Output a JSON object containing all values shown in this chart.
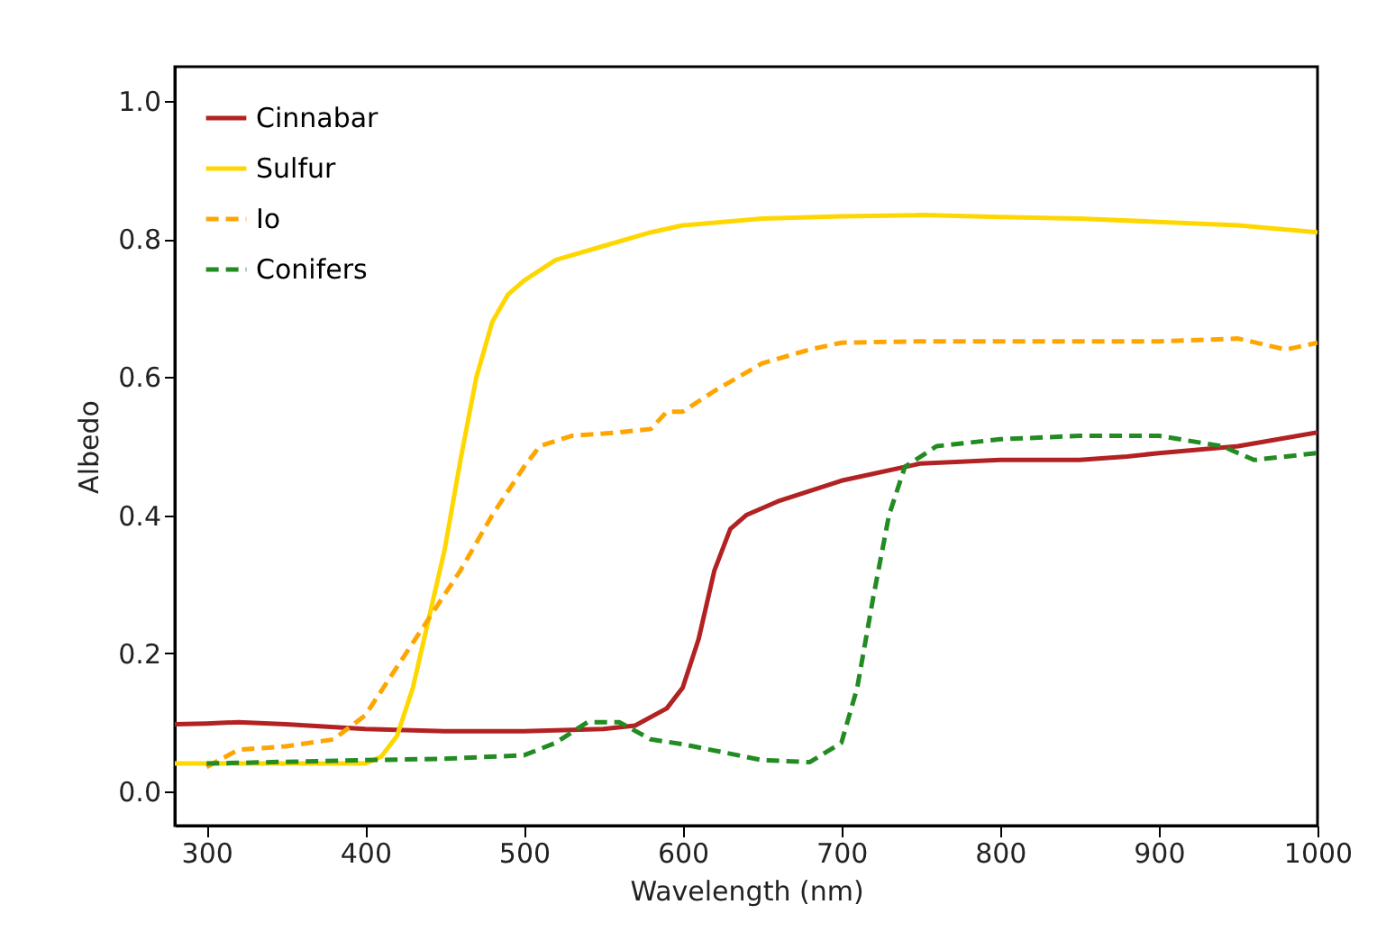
{
  "chart_data": {
    "type": "line",
    "xlabel": "Wavelength (nm)",
    "ylabel": "Albedo",
    "xlim": [
      280,
      1000
    ],
    "xticks": [
      300,
      400,
      500,
      600,
      700,
      800,
      900,
      1000
    ],
    "ylim": [
      -0.05,
      1.05
    ],
    "yticks": [
      {
        "value": 0,
        "label": "0.0"
      },
      {
        "value": 0.2,
        "label": "0.2"
      },
      {
        "value": 0.4,
        "label": "0.4"
      },
      {
        "value": 0.6,
        "label": "0.6"
      },
      {
        "value": 0.8,
        "label": "0.8"
      },
      {
        "value": 1,
        "label": "1.0"
      }
    ],
    "grid": false,
    "legend": "top left",
    "marker": "none",
    "series": [
      {
        "name": "Cinnabar",
        "color": "#b22222",
        "line_style": "solid",
        "x": [
          280,
          300,
          320,
          350,
          400,
          450,
          500,
          550,
          570,
          590,
          600,
          610,
          620,
          630,
          640,
          660,
          700,
          750,
          800,
          850,
          880,
          900,
          950,
          1000
        ],
        "values": [
          0.097,
          0.098,
          0.1,
          0.097,
          0.09,
          0.087,
          0.087,
          0.09,
          0.095,
          0.12,
          0.15,
          0.22,
          0.32,
          0.38,
          0.4,
          0.42,
          0.45,
          0.475,
          0.48,
          0.48,
          0.485,
          0.49,
          0.5,
          0.52
        ]
      },
      {
        "name": "Sulfur",
        "color": "#ffd700",
        "line_style": "solid",
        "x": [
          280,
          300,
          350,
          400,
          410,
          420,
          430,
          440,
          450,
          460,
          470,
          480,
          490,
          500,
          520,
          550,
          580,
          600,
          650,
          700,
          750,
          800,
          850,
          900,
          950,
          1000
        ],
        "values": [
          0.04,
          0.04,
          0.04,
          0.04,
          0.05,
          0.08,
          0.15,
          0.25,
          0.35,
          0.48,
          0.6,
          0.68,
          0.72,
          0.74,
          0.77,
          0.79,
          0.81,
          0.82,
          0.83,
          0.833,
          0.835,
          0.832,
          0.83,
          0.825,
          0.82,
          0.81
        ]
      },
      {
        "name": "Io",
        "color": "#ffa500",
        "line_style": "dashed",
        "x": [
          300,
          320,
          350,
          380,
          400,
          420,
          440,
          460,
          480,
          500,
          510,
          530,
          560,
          580,
          590,
          600,
          620,
          650,
          680,
          700,
          750,
          800,
          900,
          950,
          980,
          1000
        ],
        "values": [
          0.035,
          0.06,
          0.065,
          0.075,
          0.11,
          0.18,
          0.25,
          0.32,
          0.4,
          0.47,
          0.5,
          0.515,
          0.52,
          0.525,
          0.55,
          0.55,
          0.58,
          0.62,
          0.64,
          0.65,
          0.652,
          0.652,
          0.652,
          0.656,
          0.64,
          0.65
        ]
      },
      {
        "name": "Conifers",
        "color": "#228b22",
        "line_style": "dashed",
        "x": [
          300,
          400,
          450,
          500,
          520,
          540,
          560,
          580,
          600,
          650,
          680,
          700,
          710,
          720,
          730,
          740,
          760,
          800,
          850,
          900,
          940,
          960,
          1000
        ],
        "values": [
          0.04,
          0.045,
          0.047,
          0.052,
          0.07,
          0.1,
          0.1,
          0.075,
          0.068,
          0.045,
          0.042,
          0.07,
          0.15,
          0.28,
          0.4,
          0.47,
          0.5,
          0.51,
          0.515,
          0.515,
          0.5,
          0.48,
          0.49
        ]
      }
    ]
  }
}
